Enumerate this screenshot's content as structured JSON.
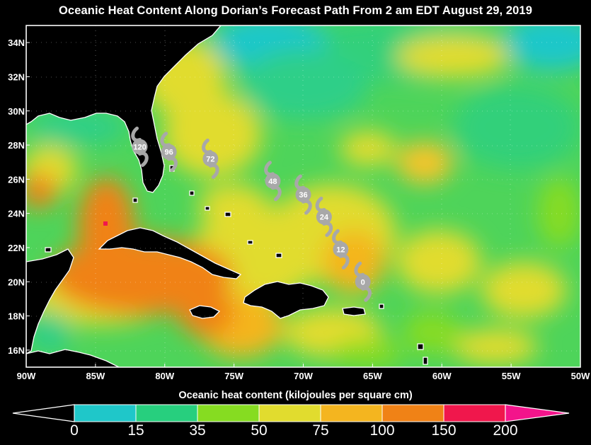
{
  "title": "Oceanic Heat Content Along Dorian’s Forecast Path From 2 am EDT August 29, 2019",
  "colorbar": {
    "title": "Oceanic heat content (kilojoules per square cm)",
    "labels": [
      "0",
      "15",
      "35",
      "50",
      "75",
      "100",
      "150",
      "200"
    ],
    "colors": [
      "#1fc7c9",
      "#27cf7e",
      "#86dc21",
      "#e1dc2e",
      "#f4b51f",
      "#f08216",
      "#f0174c",
      "#f3148b"
    ],
    "under_color": "#000000",
    "over_color": "#f3148b"
  },
  "axes": {
    "lon_labels": [
      "90W",
      "85W",
      "80W",
      "75W",
      "70W",
      "65W",
      "60W",
      "55W",
      "50W"
    ],
    "lat_labels": [
      "16N",
      "18N",
      "20N",
      "22N",
      "24N",
      "26N",
      "28N",
      "30N",
      "32N",
      "34N"
    ]
  },
  "forecast_points": [
    {
      "hour": "0",
      "lon": -65.7,
      "lat": 20.0
    },
    {
      "hour": "12",
      "lon": -67.3,
      "lat": 21.9
    },
    {
      "hour": "24",
      "lon": -68.5,
      "lat": 23.8
    },
    {
      "hour": "36",
      "lon": -70.0,
      "lat": 25.1
    },
    {
      "hour": "48",
      "lon": -72.2,
      "lat": 25.9
    },
    {
      "hour": "72",
      "lon": -76.7,
      "lat": 27.2
    },
    {
      "hour": "96",
      "lon": -79.7,
      "lat": 27.6
    },
    {
      "hour": "120",
      "lon": -81.8,
      "lat": 27.9
    }
  ],
  "colors": {
    "land": "#000000",
    "coast": "#ffffff",
    "hurricane_symbol": "#a8a8a8"
  }
}
